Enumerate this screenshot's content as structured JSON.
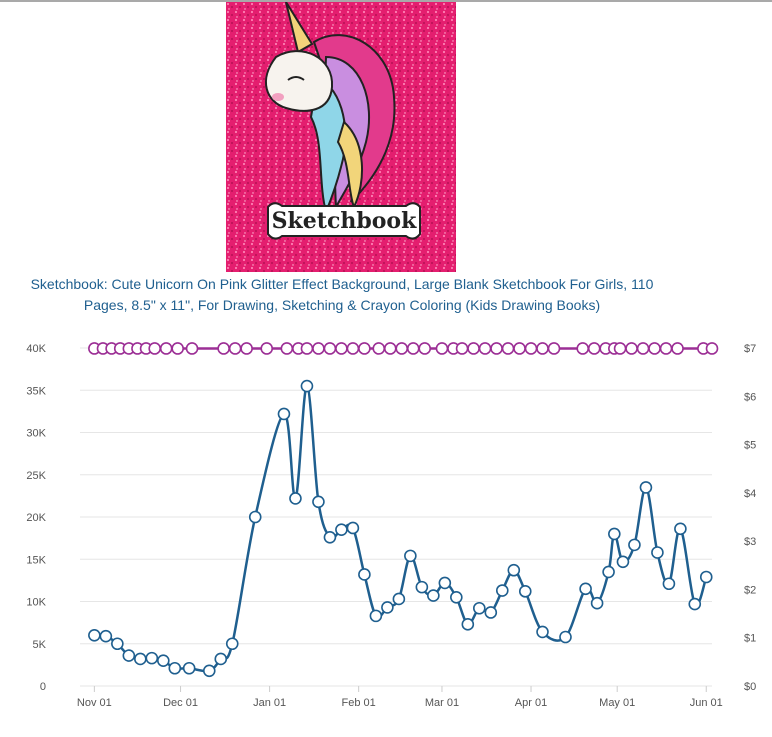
{
  "product": {
    "cover_word": "Sketchbook",
    "title_line1": "Sketchbook: Cute Unicorn On Pink Glitter Effect Background, Large Blank Sketchbook For Girls, 110",
    "title_line2": "Pages, 8.5\" x 11\", For Drawing, Sketching & Crayon Coloring (Kids Drawing Books)"
  },
  "colors": {
    "rank_line": "#1f5f8f",
    "price_line": "#9c2f95",
    "cover_background": "#e41e6f",
    "gridline": "#e6e6e6",
    "title_link": "#1f5f8f"
  },
  "chart_data": {
    "type": "line",
    "title": "",
    "x_axis": {
      "type": "date",
      "range": [
        "2019-10-27",
        "2020-06-03"
      ],
      "tick_labels": [
        "Nov 01",
        "Dec 01",
        "Jan 01",
        "Feb 01",
        "Mar 01",
        "Apr 01",
        "May 01",
        "Jun 01"
      ],
      "tick_dates": [
        "2019-11-01",
        "2019-12-01",
        "2020-01-01",
        "2020-02-01",
        "2020-03-01",
        "2020-04-01",
        "2020-05-01",
        "2020-06-01"
      ]
    },
    "y_axis_left": {
      "range": [
        0,
        40000
      ],
      "tick_labels": [
        "0",
        "5K",
        "10K",
        "15K",
        "20K",
        "25K",
        "30K",
        "35K",
        "40K"
      ],
      "tick_values": [
        0,
        5000,
        10000,
        15000,
        20000,
        25000,
        30000,
        35000,
        40000
      ]
    },
    "y_axis_right": {
      "range": [
        0,
        7
      ],
      "tick_labels": [
        "$0",
        "$1",
        "$2",
        "$3",
        "$4",
        "$5",
        "$6",
        "$7"
      ],
      "tick_values": [
        0,
        1,
        2,
        3,
        4,
        5,
        6,
        7
      ]
    },
    "grid": true,
    "legend": "none",
    "series": [
      {
        "axis": "left",
        "marker": "circle",
        "color": "#1f5f8f",
        "points": [
          [
            "2019-11-01",
            6000
          ],
          [
            "2019-11-05",
            5900
          ],
          [
            "2019-11-09",
            5000
          ],
          [
            "2019-11-13",
            3600
          ],
          [
            "2019-11-17",
            3200
          ],
          [
            "2019-11-21",
            3300
          ],
          [
            "2019-11-25",
            3000
          ],
          [
            "2019-11-29",
            2100
          ],
          [
            "2019-12-04",
            2100
          ],
          [
            "2019-12-11",
            1800
          ],
          [
            "2019-12-15",
            3200
          ],
          [
            "2019-12-19",
            5000
          ],
          [
            "2019-12-27",
            20000
          ],
          [
            "2020-01-06",
            32200
          ],
          [
            "2020-01-10",
            22200
          ],
          [
            "2020-01-14",
            35500
          ],
          [
            "2020-01-18",
            21800
          ],
          [
            "2020-01-22",
            17600
          ],
          [
            "2020-01-26",
            18500
          ],
          [
            "2020-01-30",
            18700
          ],
          [
            "2020-02-03",
            13200
          ],
          [
            "2020-02-07",
            8300
          ],
          [
            "2020-02-11",
            9300
          ],
          [
            "2020-02-15",
            10300
          ],
          [
            "2020-02-19",
            15400
          ],
          [
            "2020-02-23",
            11700
          ],
          [
            "2020-02-27",
            10700
          ],
          [
            "2020-03-02",
            12200
          ],
          [
            "2020-03-06",
            10500
          ],
          [
            "2020-03-10",
            7300
          ],
          [
            "2020-03-14",
            9200
          ],
          [
            "2020-03-18",
            8700
          ],
          [
            "2020-03-22",
            11300
          ],
          [
            "2020-03-26",
            13700
          ],
          [
            "2020-03-30",
            11200
          ],
          [
            "2020-04-05",
            6400
          ],
          [
            "2020-04-13",
            5800
          ],
          [
            "2020-04-20",
            11500
          ],
          [
            "2020-04-24",
            9800
          ],
          [
            "2020-04-28",
            13500
          ],
          [
            "2020-04-30",
            18000
          ],
          [
            "2020-05-03",
            14700
          ],
          [
            "2020-05-07",
            16700
          ],
          [
            "2020-05-11",
            23500
          ],
          [
            "2020-05-15",
            15800
          ],
          [
            "2020-05-19",
            12100
          ],
          [
            "2020-05-23",
            18600
          ],
          [
            "2020-05-28",
            9700
          ],
          [
            "2020-06-01",
            12900
          ]
        ]
      },
      {
        "axis": "right",
        "marker": "circle",
        "color": "#9c2f95",
        "points": [
          [
            "2019-11-01",
            6.99
          ],
          [
            "2019-11-04",
            6.99
          ],
          [
            "2019-11-07",
            6.99
          ],
          [
            "2019-11-10",
            6.99
          ],
          [
            "2019-11-13",
            6.99
          ],
          [
            "2019-11-16",
            6.99
          ],
          [
            "2019-11-19",
            6.99
          ],
          [
            "2019-11-22",
            6.99
          ],
          [
            "2019-11-26",
            6.99
          ],
          [
            "2019-11-30",
            6.99
          ],
          [
            "2019-12-05",
            6.99
          ],
          [
            "2019-12-16",
            6.99
          ],
          [
            "2019-12-20",
            6.99
          ],
          [
            "2019-12-24",
            6.99
          ],
          [
            "2019-12-31",
            6.99
          ],
          [
            "2020-01-07",
            6.99
          ],
          [
            "2020-01-11",
            6.99
          ],
          [
            "2020-01-14",
            6.99
          ],
          [
            "2020-01-18",
            6.99
          ],
          [
            "2020-01-22",
            6.99
          ],
          [
            "2020-01-26",
            6.99
          ],
          [
            "2020-01-30",
            6.99
          ],
          [
            "2020-02-03",
            6.99
          ],
          [
            "2020-02-08",
            6.99
          ],
          [
            "2020-02-12",
            6.99
          ],
          [
            "2020-02-16",
            6.99
          ],
          [
            "2020-02-20",
            6.99
          ],
          [
            "2020-02-24",
            6.99
          ],
          [
            "2020-03-01",
            6.99
          ],
          [
            "2020-03-05",
            6.99
          ],
          [
            "2020-03-08",
            6.99
          ],
          [
            "2020-03-12",
            6.99
          ],
          [
            "2020-03-16",
            6.99
          ],
          [
            "2020-03-20",
            6.99
          ],
          [
            "2020-03-24",
            6.99
          ],
          [
            "2020-03-28",
            6.99
          ],
          [
            "2020-04-01",
            6.99
          ],
          [
            "2020-04-05",
            6.99
          ],
          [
            "2020-04-09",
            6.99
          ],
          [
            "2020-04-19",
            6.99
          ],
          [
            "2020-04-23",
            6.99
          ],
          [
            "2020-04-27",
            6.99
          ],
          [
            "2020-04-30",
            6.99
          ],
          [
            "2020-05-02",
            6.99
          ],
          [
            "2020-05-06",
            6.99
          ],
          [
            "2020-05-10",
            6.99
          ],
          [
            "2020-05-14",
            6.99
          ],
          [
            "2020-05-18",
            6.99
          ],
          [
            "2020-05-22",
            6.99
          ],
          [
            "2020-05-31",
            6.99
          ],
          [
            "2020-06-03",
            6.99
          ]
        ]
      }
    ]
  }
}
